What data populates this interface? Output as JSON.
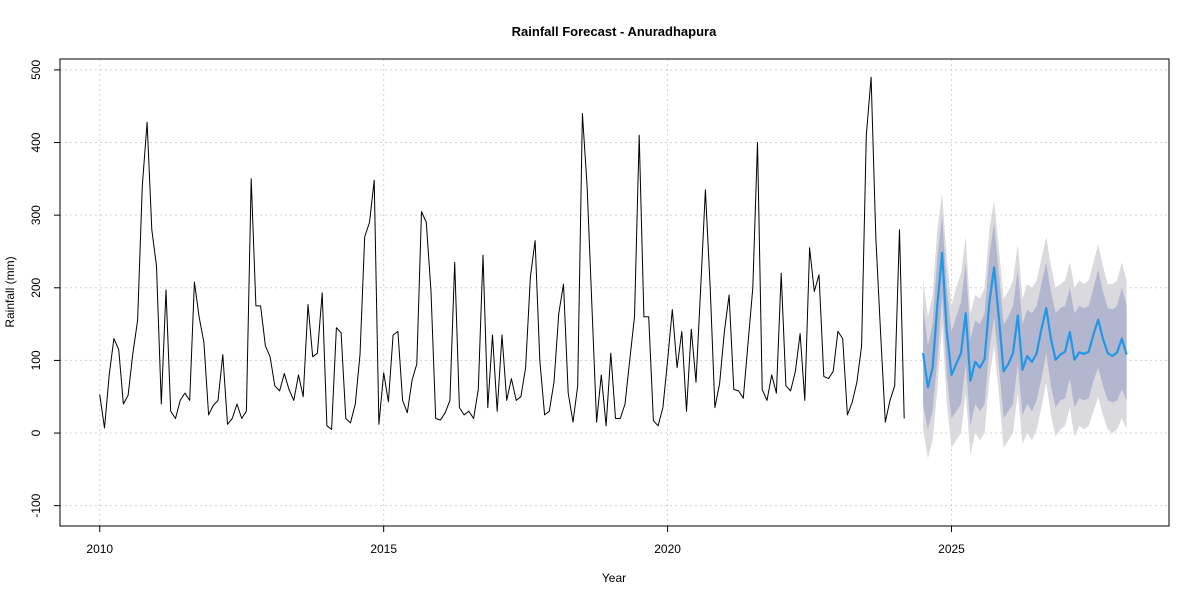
{
  "chart_data": {
    "type": "line",
    "title": "Rainfall Forecast - Anuradhapura",
    "xlabel": "Year",
    "ylabel": "Rainfall (mm)",
    "xlim": [
      2009.3,
      2028.83
    ],
    "ylim": [
      -128,
      515
    ],
    "grid": true,
    "x_ticks": [
      2010,
      2015,
      2020,
      2025
    ],
    "y_ticks": [
      -100,
      0,
      100,
      200,
      300,
      400,
      500
    ],
    "colors": {
      "observed": "#000000",
      "forecast": "#2297e6",
      "band95": "#d9d9de",
      "band80": "#b3b6cf",
      "grid": "#d3d3d3"
    },
    "series": [
      {
        "role": "observed",
        "start": 2010.0,
        "step": 0.0833333,
        "values": [
          53,
          7,
          80,
          130,
          115,
          40,
          52,
          110,
          155,
          340,
          428,
          280,
          230,
          40,
          197,
          30,
          20,
          45,
          55,
          45,
          208,
          160,
          125,
          25,
          38,
          45,
          108,
          12,
          20,
          40,
          20,
          30,
          350,
          175,
          175,
          120,
          105,
          65,
          58,
          82,
          60,
          45,
          80,
          50,
          177,
          105,
          110,
          193,
          10,
          5,
          145,
          138,
          20,
          14,
          40,
          108,
          270,
          290,
          348,
          12,
          83,
          43,
          135,
          140,
          45,
          28,
          73,
          95,
          305,
          290,
          195,
          20,
          18,
          28,
          45,
          235,
          35,
          25,
          30,
          20,
          60,
          245,
          35,
          135,
          30,
          135,
          45,
          75,
          45,
          50,
          90,
          215,
          265,
          100,
          25,
          30,
          70,
          165,
          205,
          55,
          15,
          65,
          440,
          340,
          175,
          15,
          80,
          10,
          110,
          20,
          20,
          40,
          100,
          160,
          410,
          160,
          160,
          17,
          10,
          35,
          100,
          170,
          90,
          140,
          30,
          143,
          70,
          200,
          335,
          200,
          35,
          68,
          140,
          190,
          60,
          58,
          48,
          123,
          200,
          400,
          60,
          45,
          80,
          55,
          220,
          65,
          58,
          85,
          137,
          45,
          255,
          195,
          218,
          78,
          75,
          85,
          140,
          130,
          25,
          42,
          70,
          120,
          410,
          490,
          270,
          140,
          15,
          45,
          65,
          280,
          20
        ]
      },
      {
        "role": "forecast",
        "start": 2024.5,
        "step": 0.0833333,
        "values": [
          110,
          63,
          90,
          175,
          248,
          140,
          80,
          95,
          110,
          165,
          72,
          98,
          90,
          102,
          180,
          228,
          160,
          85,
          95,
          110,
          162,
          87,
          106,
          98,
          110,
          143,
          172,
          130,
          101,
          108,
          112,
          139,
          101,
          111,
          109,
          112,
          136,
          156,
          130,
          110,
          106,
          111,
          130,
          108
        ],
        "band80_upper": [
          175,
          120,
          150,
          240,
          300,
          200,
          140,
          160,
          180,
          235,
          130,
          155,
          150,
          165,
          245,
          290,
          220,
          150,
          160,
          175,
          225,
          150,
          170,
          165,
          175,
          205,
          235,
          195,
          165,
          172,
          175,
          200,
          165,
          175,
          172,
          175,
          200,
          225,
          195,
          172,
          170,
          175,
          200,
          175
        ],
        "band80_lower": [
          40,
          5,
          30,
          100,
          190,
          80,
          20,
          30,
          40,
          95,
          10,
          40,
          30,
          40,
          115,
          160,
          95,
          20,
          30,
          40,
          95,
          25,
          40,
          30,
          45,
          75,
          110,
          65,
          35,
          45,
          48,
          75,
          35,
          48,
          45,
          48,
          72,
          90,
          65,
          45,
          42,
          45,
          60,
          45
        ],
        "band95_upper": [
          210,
          160,
          190,
          280,
          330,
          240,
          175,
          200,
          220,
          270,
          165,
          190,
          185,
          200,
          280,
          320,
          255,
          185,
          195,
          210,
          260,
          185,
          205,
          200,
          210,
          240,
          270,
          230,
          200,
          205,
          210,
          235,
          200,
          210,
          205,
          210,
          235,
          260,
          230,
          205,
          205,
          210,
          235,
          210
        ],
        "band95_lower": [
          5,
          -35,
          -10,
          60,
          150,
          40,
          -20,
          -10,
          0,
          55,
          -30,
          0,
          -10,
          0,
          75,
          120,
          55,
          -20,
          -10,
          0,
          55,
          -15,
          0,
          -10,
          5,
          35,
          70,
          25,
          -5,
          5,
          10,
          35,
          -5,
          10,
          5,
          10,
          30,
          50,
          25,
          5,
          0,
          5,
          20,
          5
        ]
      }
    ]
  }
}
